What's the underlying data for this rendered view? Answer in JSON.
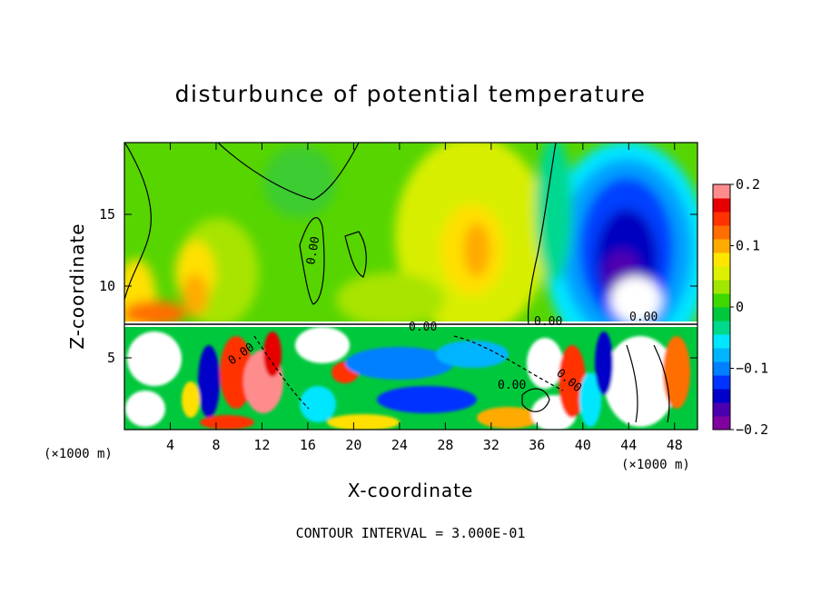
{
  "chart_data": {
    "type": "heatmap",
    "title": "disturbunce of potential temperature",
    "xlabel": "X-coordinate",
    "ylabel": "Z-coordinate",
    "x_unit": "(×1000 m)",
    "x_unit_right": "(×1000 m)",
    "xlim": [
      0,
      50
    ],
    "ylim": [
      0,
      20
    ],
    "x_ticks": [
      "4",
      "8",
      "12",
      "16",
      "20",
      "24",
      "28",
      "32",
      "36",
      "40",
      "44",
      "48"
    ],
    "y_ticks": [
      "5",
      "10",
      "15"
    ],
    "colorbar": {
      "range": [
        -0.2,
        0.2
      ],
      "tick_labels": [
        "0.2",
        "0.1",
        "0",
        "−0.1",
        "−0.2"
      ],
      "colors": [
        "#8000a0",
        "#4b00b0",
        "#0000c8",
        "#0033ff",
        "#0080ff",
        "#00b4ff",
        "#00e6ff",
        "#00d88c",
        "#00c83c",
        "#3cd800",
        "#a0e600",
        "#dcf000",
        "#ffe600",
        "#ffaa00",
        "#ff6e00",
        "#ff3200",
        "#e60000",
        "#ff8c8c"
      ]
    },
    "contour_labels": [
      "0.00",
      "0.00",
      "0.00",
      "0.00",
      "0.00",
      "0.00",
      "0.00"
    ],
    "footer": "CONTOUR INTERVAL = 3.000E-01"
  }
}
